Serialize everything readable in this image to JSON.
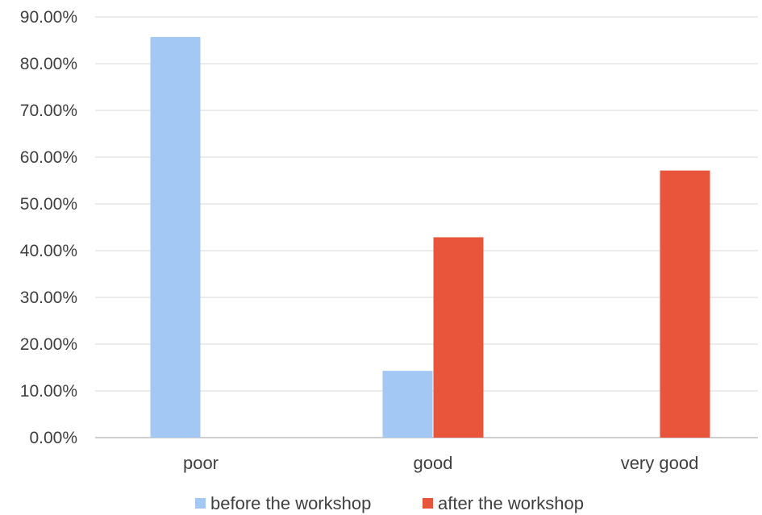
{
  "chart_data": {
    "type": "bar",
    "categories": [
      "poor",
      "good",
      "very good"
    ],
    "series": [
      {
        "name": "before the workshop",
        "values": [
          85.71,
          14.29,
          0
        ],
        "color": "#a4c8f4"
      },
      {
        "name": "after the workshop",
        "values": [
          0,
          42.86,
          57.14
        ],
        "color": "#e8553a"
      }
    ],
    "y_ticks": [
      "0.00%",
      "10.00%",
      "20.00%",
      "30.00%",
      "40.00%",
      "50.00%",
      "60.00%",
      "70.00%",
      "80.00%",
      "90.00%"
    ],
    "ylim": [
      0,
      90
    ],
    "grid": true,
    "legend_position": "bottom",
    "title": "",
    "xlabel": "",
    "ylabel": ""
  }
}
